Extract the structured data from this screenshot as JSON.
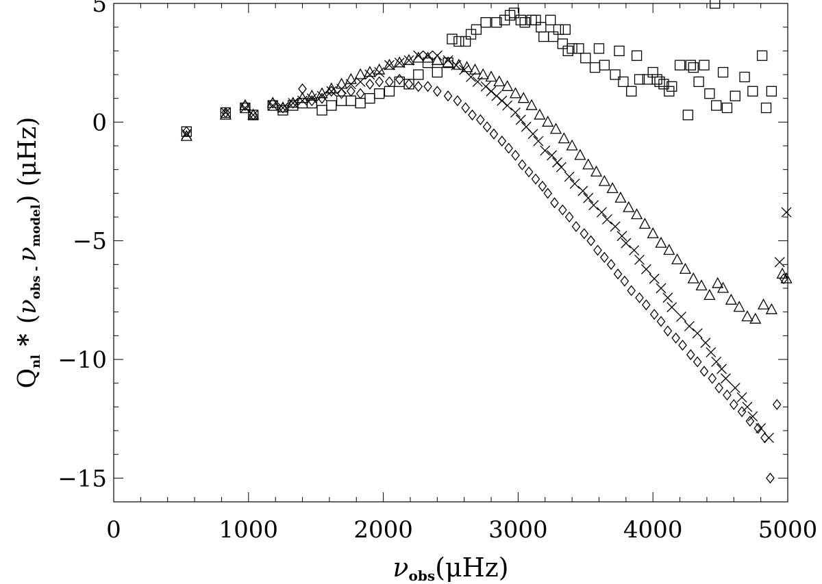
{
  "chart_data": {
    "type": "scatter",
    "xlabel": {
      "main": "ν",
      "sub": "obs",
      "unit": "(μHz)"
    },
    "ylabel": {
      "q": "Q",
      "q_sub": "nl",
      "star": "*",
      "open": "(",
      "nu1": "ν",
      "sub1": "obs",
      "dash": " - ",
      "nu2": "ν",
      "sub2": "model",
      "close": ")",
      "unit": "(μHz)"
    },
    "xlim": [
      0,
      5000
    ],
    "ylim": [
      -16,
      5
    ],
    "x_ticks": [
      0,
      1000,
      2000,
      3000,
      4000,
      5000
    ],
    "x_tick_labels": [
      "0",
      "1000",
      "2000",
      "3000",
      "4000",
      "5000"
    ],
    "y_ticks": [
      5,
      0,
      -5,
      -10,
      -15
    ],
    "y_tick_labels": [
      "5",
      "0",
      "−5",
      "−10",
      "−15"
    ],
    "grid": false,
    "series": [
      {
        "marker": "square",
        "x": [
          540,
          830,
          975,
          1035,
          1180,
          1255,
          1330,
          1400,
          1470,
          1545,
          1615,
          1690,
          1760,
          1830,
          1900,
          1970,
          2045,
          2120,
          2190,
          2260,
          2330,
          2400,
          2480,
          2510,
          2560,
          2610,
          2650,
          2690,
          2760,
          2840,
          2900,
          2940,
          2970,
          3020,
          3050,
          3100,
          3130,
          3170,
          3190,
          3240,
          3260,
          3300,
          3330,
          3350,
          3370,
          3400,
          3450,
          3500,
          3570,
          3600,
          3640,
          3720,
          3750,
          3780,
          3840,
          3880,
          3900,
          3960,
          4000,
          4030,
          4050,
          4080,
          4120,
          4140,
          4200,
          4260,
          4280,
          4300,
          4340,
          4380,
          4420,
          4460,
          4470,
          4520,
          4550,
          4610,
          4680,
          4740,
          4810,
          4840,
          4880
        ],
        "y": [
          -0.4,
          0.4,
          0.6,
          0.3,
          0.7,
          0.5,
          0.7,
          0.8,
          0.8,
          0.5,
          0.7,
          0.9,
          0.9,
          0.8,
          1.0,
          1.2,
          1.3,
          1.7,
          1.6,
          2.0,
          2.5,
          2.1,
          2.5,
          3.5,
          3.4,
          3.4,
          3.7,
          3.9,
          4.2,
          4.2,
          4.3,
          4.5,
          4.6,
          4.3,
          4.2,
          4.3,
          4.3,
          4.0,
          3.6,
          4.3,
          3.6,
          3.9,
          3.3,
          3.9,
          3.0,
          3.1,
          3.1,
          2.7,
          2.3,
          3.1,
          2.4,
          2.0,
          3.0,
          1.7,
          1.3,
          2.8,
          1.8,
          1.8,
          2.1,
          1.8,
          1.7,
          1.6,
          1.3,
          1.5,
          2.4,
          0.3,
          2.4,
          2.3,
          1.7,
          2.4,
          1.2,
          5.0,
          0.7,
          2.1,
          0.6,
          1.1,
          1.9,
          1.3,
          2.8,
          0.6,
          1.3
        ]
      },
      {
        "marker": "cross",
        "x": [
          540,
          830,
          975,
          1035,
          1180,
          1255,
          1330,
          1400,
          1470,
          1545,
          1615,
          1690,
          1760,
          1830,
          1900,
          1970,
          2045,
          2120,
          2190,
          2260,
          2330,
          2400,
          2480,
          2540,
          2600,
          2650,
          2700,
          2760,
          2800,
          2840,
          2880,
          2920,
          2980,
          3020,
          3060,
          3110,
          3150,
          3200,
          3250,
          3290,
          3320,
          3380,
          3420,
          3480,
          3520,
          3560,
          3620,
          3660,
          3720,
          3770,
          3800,
          3860,
          3900,
          3950,
          4010,
          4060,
          4110,
          4140,
          4210,
          4270,
          4330,
          4390,
          4430,
          4470,
          4510,
          4540,
          4610,
          4660,
          4700,
          4740,
          4800,
          4860,
          4940,
          4990
        ],
        "y": [
          -0.5,
          0.4,
          0.6,
          0.3,
          0.7,
          0.6,
          0.8,
          0.9,
          1.0,
          1.1,
          1.3,
          1.4,
          1.6,
          1.7,
          2.0,
          2.1,
          2.4,
          2.5,
          2.6,
          2.8,
          2.8,
          2.8,
          2.6,
          2.4,
          2.2,
          1.9,
          1.7,
          1.5,
          1.3,
          1.1,
          0.9,
          0.7,
          0.4,
          0.1,
          -0.2,
          -0.5,
          -0.8,
          -1.2,
          -1.4,
          -1.7,
          -1.9,
          -2.3,
          -2.6,
          -2.9,
          -3.2,
          -3.5,
          -3.8,
          -4.1,
          -4.4,
          -4.8,
          -5.1,
          -5.4,
          -5.8,
          -6.2,
          -6.6,
          -7.0,
          -7.4,
          -7.8,
          -8.2,
          -8.6,
          -8.9,
          -9.3,
          -9.7,
          -10.1,
          -10.4,
          -10.8,
          -11.2,
          -11.6,
          -12.0,
          -12.4,
          -12.9,
          -13.3,
          -5.9,
          -3.8
        ]
      },
      {
        "marker": "triangle",
        "x": [
          540,
          830,
          975,
          1035,
          1180,
          1255,
          1330,
          1400,
          1470,
          1545,
          1615,
          1690,
          1760,
          1830,
          1900,
          1970,
          2045,
          2120,
          2190,
          2260,
          2330,
          2400,
          2480,
          2560,
          2620,
          2680,
          2740,
          2800,
          2860,
          2920,
          2980,
          3040,
          3100,
          3160,
          3220,
          3280,
          3340,
          3400,
          3460,
          3520,
          3580,
          3640,
          3700,
          3760,
          3820,
          3880,
          3940,
          4000,
          4060,
          4120,
          4180,
          4240,
          4300,
          4360,
          4420,
          4480,
          4520,
          4580,
          4640,
          4700,
          4760,
          4820,
          4880,
          4960,
          4990
        ],
        "y": [
          -0.6,
          0.3,
          0.7,
          0.3,
          0.8,
          0.6,
          0.8,
          1.0,
          1.1,
          1.2,
          1.4,
          1.6,
          1.8,
          2.0,
          2.1,
          2.2,
          2.4,
          2.5,
          2.6,
          2.7,
          2.7,
          2.6,
          2.5,
          2.4,
          2.3,
          2.2,
          2.0,
          1.9,
          1.7,
          1.5,
          1.2,
          1.0,
          0.7,
          0.3,
          0.0,
          -0.3,
          -0.7,
          -1.0,
          -1.4,
          -1.8,
          -2.1,
          -2.5,
          -2.8,
          -3.2,
          -3.6,
          -3.9,
          -4.3,
          -4.7,
          -5.1,
          -5.4,
          -5.8,
          -6.2,
          -6.6,
          -6.9,
          -7.3,
          -6.8,
          -7.0,
          -7.5,
          -7.8,
          -8.2,
          -8.3,
          -7.7,
          -7.9,
          -6.4,
          -6.6
        ]
      },
      {
        "marker": "diamond",
        "x": [
          540,
          830,
          975,
          1035,
          1180,
          1255,
          1330,
          1400,
          1470,
          1545,
          1615,
          1690,
          1760,
          1830,
          1900,
          1970,
          2045,
          2120,
          2190,
          2260,
          2330,
          2400,
          2480,
          2550,
          2610,
          2660,
          2720,
          2770,
          2820,
          2880,
          2930,
          2980,
          3030,
          3080,
          3130,
          3180,
          3220,
          3270,
          3330,
          3380,
          3430,
          3490,
          3540,
          3590,
          3640,
          3690,
          3740,
          3790,
          3840,
          3900,
          3950,
          4010,
          4060,
          4110,
          4170,
          4220,
          4280,
          4330,
          4380,
          4440,
          4490,
          4550,
          4600,
          4660,
          4720,
          4780,
          4830,
          4870,
          4920,
          4970
        ],
        "y": [
          -0.4,
          0.4,
          0.7,
          0.3,
          0.8,
          0.6,
          0.8,
          1.4,
          0.9,
          1.0,
          1.3,
          1.2,
          1.3,
          1.2,
          1.6,
          1.7,
          1.7,
          1.8,
          1.6,
          1.5,
          1.5,
          1.3,
          1.1,
          0.9,
          0.6,
          0.3,
          0.1,
          -0.2,
          -0.5,
          -0.8,
          -1.1,
          -1.4,
          -1.8,
          -2.1,
          -2.4,
          -2.7,
          -3.0,
          -3.4,
          -3.7,
          -4.0,
          -4.4,
          -4.7,
          -5.0,
          -5.4,
          -5.7,
          -6.0,
          -6.4,
          -6.7,
          -7.1,
          -7.4,
          -7.7,
          -8.1,
          -8.4,
          -8.8,
          -9.1,
          -9.4,
          -9.8,
          -10.1,
          -10.5,
          -10.8,
          -11.2,
          -11.5,
          -11.9,
          -12.2,
          -12.6,
          -12.9,
          -13.3,
          -15.0,
          -11.9,
          -6.6
        ]
      }
    ]
  }
}
